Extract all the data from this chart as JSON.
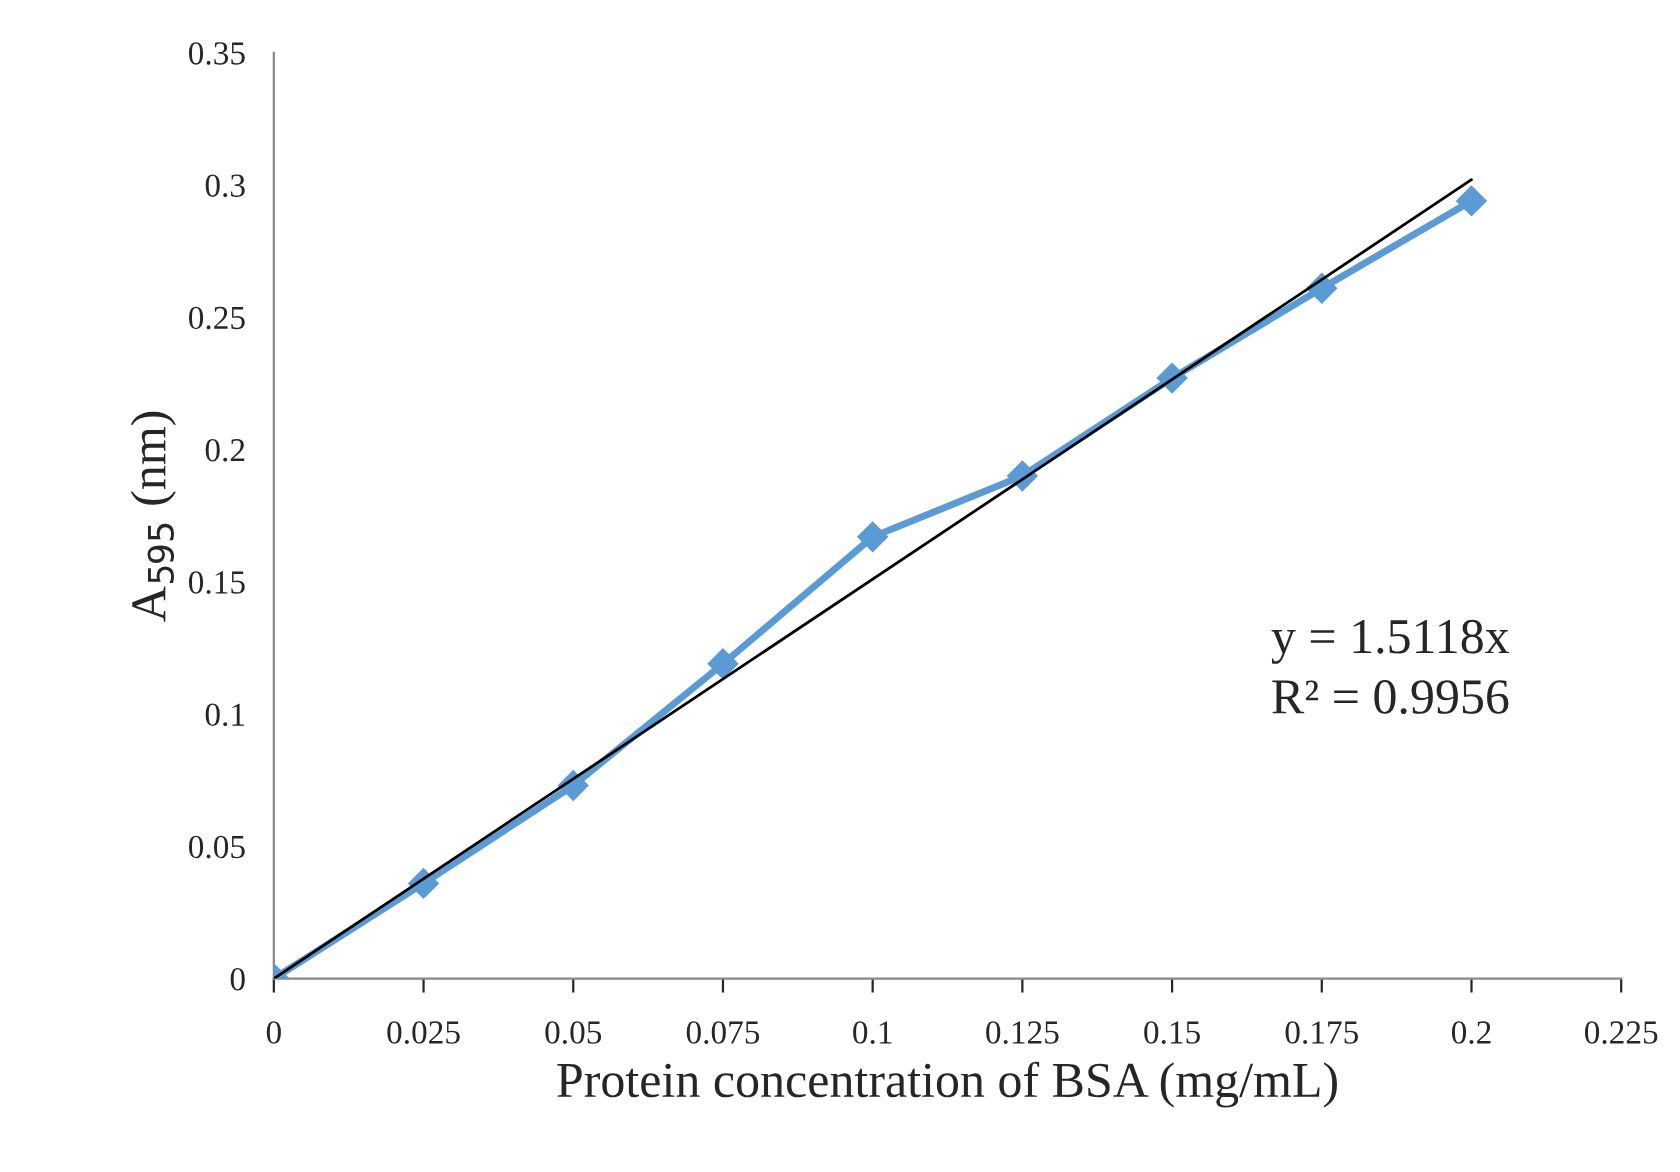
{
  "chart_data": {
    "type": "line",
    "xlabel": "Protein concentration of BSA (mg/mL)",
    "ylabel": "A$_{595}$ (nm)",
    "series": [
      {
        "color": "#5b9bd5",
        "marker": "diamond",
        "x": [
          0,
          0.025,
          0.05,
          0.075,
          0.1,
          0.125,
          0.15,
          0.175,
          0.2
        ],
        "values": [
          0,
          0.036,
          0.073,
          0.119,
          0.167,
          0.19,
          0.227,
          0.261,
          0.294
        ]
      },
      {
        "color": "#000000",
        "marker": "none",
        "x": [
          0,
          0.2
        ],
        "values": [
          0,
          0.302
        ]
      }
    ],
    "xlim": [
      0,
      0.225
    ],
    "xticks": [
      0,
      0.025,
      0.05,
      0.075,
      0.1,
      0.125,
      0.15,
      0.175,
      0.2,
      0.225
    ],
    "ylim": [
      0,
      0.35
    ],
    "yticks": [
      0,
      0.05,
      0.1,
      0.15,
      0.2,
      0.25,
      0.3,
      0.35
    ],
    "grid": false,
    "legend": false,
    "annotations": [
      "y = 1.5118x",
      "R² = 0.9956"
    ]
  }
}
